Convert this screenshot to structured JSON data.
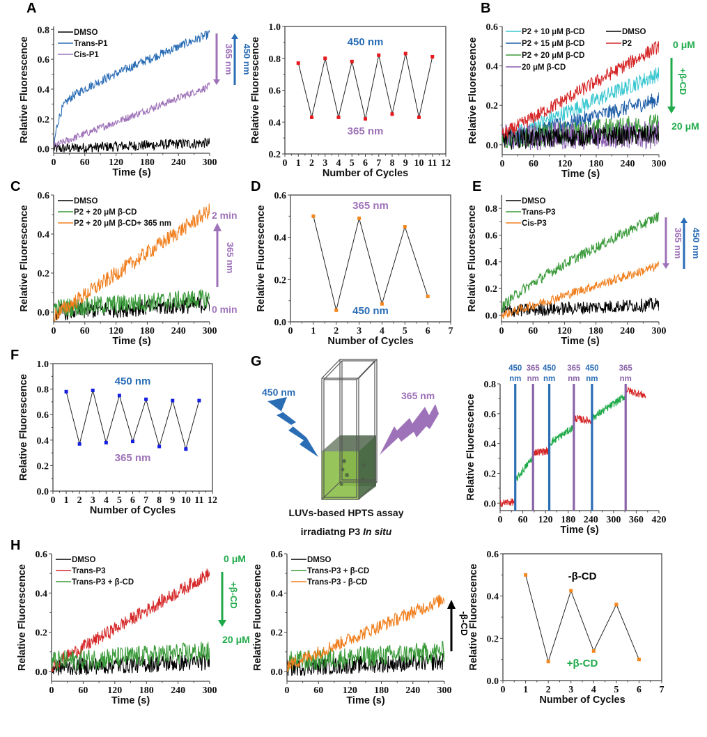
{
  "figure": {
    "panel_letters": [
      "A",
      "B",
      "C",
      "D",
      "E",
      "F",
      "G",
      "H"
    ],
    "ylabel": "Relative Fluorescence",
    "colors": {
      "blue": "#2a6db5",
      "purple": "#9e72b8",
      "green": "#1faa4a",
      "red": "#d62728",
      "orange": "#f07f1e",
      "cyan": "#3cc8d0",
      "darkblue": "#1f5fa8",
      "black": "#000000",
      "point_red": "#e8171b",
      "point_orange": "#f5871f",
      "point_blue": "#1520e0"
    }
  },
  "chart_data": [
    {
      "id": "A1",
      "panel": "A",
      "type": "line",
      "xlabel": "Time (s)",
      "ylabel": "Relative Fluorescence",
      "xlim": [
        0,
        300
      ],
      "ylim": [
        -0.03,
        0.82
      ],
      "xticks": [
        0,
        60,
        120,
        180,
        240,
        300
      ],
      "yticks": [
        0.0,
        0.2,
        0.4,
        0.6,
        0.8
      ],
      "legend": "top-left",
      "series": [
        {
          "name": "DMSO",
          "color": "#000000",
          "kind": "const",
          "start": 0.0,
          "end": 0.04,
          "noise": 0.035
        },
        {
          "name": "Trans-P1",
          "color": "#2a6db5",
          "kind": "sat",
          "start": 0.0,
          "end": 0.77,
          "tau": 0.0,
          "noise": 0.03
        },
        {
          "name": "Cis-P1",
          "color": "#9e72b8",
          "kind": "lin",
          "start": 0.02,
          "end": 0.42,
          "noise": 0.025
        }
      ],
      "annotations": [
        {
          "text": "365 nm",
          "color": "#9e72b8",
          "arrow": "down"
        },
        {
          "text": "450 nm",
          "color": "#2a6db5",
          "arrow": "up"
        }
      ]
    },
    {
      "id": "A2",
      "panel": "A",
      "type": "line",
      "xlabel": "Number of Cycles",
      "ylabel": "Relative Fluorescence",
      "xlim": [
        0,
        12
      ],
      "ylim": [
        0.2,
        1.0
      ],
      "xticks": [
        0,
        1,
        2,
        3,
        4,
        5,
        6,
        7,
        8,
        9,
        10,
        11,
        12
      ],
      "yticks": [
        0.2,
        0.4,
        0.6,
        0.8,
        1.0
      ],
      "x": [
        1,
        2,
        3,
        4,
        5,
        6,
        7,
        8,
        9,
        10,
        11
      ],
      "values": [
        0.77,
        0.43,
        0.8,
        0.43,
        0.78,
        0.42,
        0.82,
        0.45,
        0.83,
        0.43,
        0.81
      ],
      "point_color": "#e8171b",
      "annotations": [
        {
          "text": "450 nm",
          "color": "#2a6db5",
          "position": "top-center"
        },
        {
          "text": "365 nm",
          "color": "#9e72b8",
          "position": "bottom-center"
        }
      ]
    },
    {
      "id": "B",
      "panel": "B",
      "type": "line",
      "xlabel": "Time (s)",
      "ylabel": "Relative Fluorescence",
      "xlim": [
        0,
        300
      ],
      "ylim": [
        -0.05,
        0.6
      ],
      "xticks": [
        0,
        60,
        120,
        180,
        240,
        300
      ],
      "yticks": [
        0.0,
        0.2,
        0.4,
        0.6
      ],
      "legend": "top",
      "series": [
        {
          "name": "P2 + 10 μM β-CD",
          "color": "#3cc8d0",
          "kind": "lin",
          "start": 0.03,
          "end": 0.36,
          "noise": 0.04
        },
        {
          "name": "P2 + 15 μM β-CD",
          "color": "#1f5fa8",
          "kind": "lin",
          "start": 0.02,
          "end": 0.23,
          "noise": 0.04
        },
        {
          "name": "P2 + 20 μM β-CD",
          "color": "#3a9a3a",
          "kind": "lin",
          "start": 0.03,
          "end": 0.1,
          "noise": 0.06
        },
        {
          "name": "20 μM β-CD",
          "color": "#8a5fb0",
          "kind": "const",
          "start": 0.04,
          "end": 0.05,
          "noise": 0.07
        },
        {
          "name": "DMSO",
          "color": "#000000",
          "kind": "const",
          "start": 0.03,
          "end": 0.05,
          "noise": 0.05
        },
        {
          "name": "P2",
          "color": "#d62728",
          "kind": "lin",
          "start": 0.05,
          "end": 0.5,
          "noise": 0.035
        }
      ],
      "annotations": [
        {
          "text": "0 μM",
          "color": "#1faa4a"
        },
        {
          "text": "+β-CD",
          "color": "#1faa4a",
          "arrow": "down"
        },
        {
          "text": "20 μM",
          "color": "#1faa4a"
        }
      ]
    },
    {
      "id": "C",
      "panel": "C",
      "type": "line",
      "xlabel": "Time (s)",
      "ylabel": "Relative Fluorescence",
      "xlim": [
        0,
        300
      ],
      "ylim": [
        -0.05,
        0.6
      ],
      "xticks": [
        0,
        60,
        120,
        180,
        240,
        300
      ],
      "yticks": [
        0.0,
        0.2,
        0.4,
        0.6
      ],
      "legend": "top-left",
      "series": [
        {
          "name": "DMSO",
          "color": "#000000",
          "kind": "const",
          "start": 0.0,
          "end": 0.04,
          "noise": 0.045
        },
        {
          "name": "P2 + 20 μM β-CD",
          "color": "#3a9a3a",
          "kind": "const",
          "start": 0.02,
          "end": 0.07,
          "noise": 0.05
        },
        {
          "name": "P2 + 20 μM β-CD+ 365 nm",
          "color": "#f07f1e",
          "kind": "lin",
          "start": -0.02,
          "end": 0.52,
          "noise": 0.04
        }
      ],
      "annotations": [
        {
          "text": "2 min",
          "color": "#9e72b8"
        },
        {
          "text": "365 nm",
          "color": "#9e72b8",
          "arrow": "up"
        },
        {
          "text": "0 min",
          "color": "#9e72b8"
        }
      ]
    },
    {
      "id": "D",
      "panel": "D",
      "type": "line",
      "xlabel": "Number of Cycles",
      "ylabel": "Relative Fluorescence",
      "xlim": [
        0,
        7
      ],
      "ylim": [
        0.0,
        0.6
      ],
      "xticks": [
        0,
        1,
        2,
        3,
        4,
        5,
        6,
        7
      ],
      "yticks": [
        0.0,
        0.2,
        0.4,
        0.6
      ],
      "x": [
        1,
        2,
        3,
        4,
        5,
        6
      ],
      "values": [
        0.5,
        0.055,
        0.49,
        0.085,
        0.45,
        0.12
      ],
      "point_color": "#f5871f",
      "annotations": [
        {
          "text": "365 nm",
          "color": "#9e72b8",
          "position": "top-center"
        },
        {
          "text": "450 nm",
          "color": "#2a6db5",
          "position": "bottom-center"
        }
      ]
    },
    {
      "id": "E",
      "panel": "E",
      "type": "line",
      "xlabel": "Time (s)",
      "ylabel": "Relative Fluorescence",
      "xlim": [
        0,
        300
      ],
      "ylim": [
        -0.05,
        0.9
      ],
      "xticks": [
        0,
        60,
        120,
        180,
        240,
        300
      ],
      "yticks": [
        0.0,
        0.2,
        0.4,
        0.6,
        0.8
      ],
      "legend": "top-left",
      "series": [
        {
          "name": "DMSO",
          "color": "#000000",
          "kind": "const",
          "start": 0.03,
          "end": 0.08,
          "noise": 0.05
        },
        {
          "name": "Trans-P3",
          "color": "#3a9a3a",
          "kind": "sqrtish",
          "start": 0.05,
          "end": 0.74,
          "noise": 0.04
        },
        {
          "name": "Cis-P3",
          "color": "#f07f1e",
          "kind": "lin",
          "start": 0.0,
          "end": 0.37,
          "noise": 0.035
        }
      ],
      "annotations": [
        {
          "text": "365 nm",
          "color": "#9e72b8",
          "arrow": "down"
        },
        {
          "text": "450 nm",
          "color": "#2a6db5",
          "arrow": "up"
        }
      ]
    },
    {
      "id": "F",
      "panel": "F",
      "type": "line",
      "xlabel": "Number of Cycles",
      "ylabel": "Relative Fluorescence",
      "xlim": [
        0,
        12
      ],
      "ylim": [
        0.0,
        1.0
      ],
      "xticks": [
        0,
        1,
        2,
        3,
        4,
        5,
        6,
        7,
        8,
        9,
        10,
        11,
        12
      ],
      "yticks": [
        0.0,
        0.2,
        0.4,
        0.6,
        0.8,
        1.0
      ],
      "x": [
        1,
        2,
        3,
        4,
        5,
        6,
        7,
        8,
        9,
        10,
        11
      ],
      "values": [
        0.78,
        0.37,
        0.79,
        0.38,
        0.75,
        0.39,
        0.72,
        0.35,
        0.71,
        0.33,
        0.71
      ],
      "point_color": "#1520e0",
      "annotations": [
        {
          "text": "450 nm",
          "color": "#2a6db5",
          "position": "top-center"
        },
        {
          "text": "365 nm",
          "color": "#9e72b8",
          "position": "bottom-center"
        }
      ]
    },
    {
      "id": "G",
      "panel": "G",
      "type": "line",
      "xlabel": "Time (s)",
      "ylabel": "Relative Fluorescence",
      "xlim": [
        0,
        420
      ],
      "ylim": [
        -0.05,
        0.8
      ],
      "xticks": [
        0,
        60,
        120,
        180,
        240,
        300,
        360,
        420
      ],
      "yticks": [
        0.0,
        0.2,
        0.4,
        0.6,
        0.8
      ],
      "segments": [
        {
          "x0": 0,
          "x1": 40,
          "y0": 0.0,
          "y1": 0.01,
          "color": "#d62728"
        },
        {
          "x0": 40,
          "x1": 87,
          "y0": 0.15,
          "y1": 0.31,
          "color": "#1faa4a"
        },
        {
          "x0": 87,
          "x1": 130,
          "y0": 0.34,
          "y1": 0.35,
          "color": "#d62728"
        },
        {
          "x0": 130,
          "x1": 195,
          "y0": 0.4,
          "y1": 0.51,
          "color": "#1faa4a"
        },
        {
          "x0": 195,
          "x1": 243,
          "y0": 0.57,
          "y1": 0.55,
          "color": "#d62728"
        },
        {
          "x0": 243,
          "x1": 332,
          "y0": 0.57,
          "y1": 0.72,
          "color": "#1faa4a"
        },
        {
          "x0": 332,
          "x1": 385,
          "y0": 0.76,
          "y1": 0.72,
          "color": "#d62728"
        }
      ],
      "irradiation_markers": [
        {
          "time": 40,
          "label": "450 nm",
          "color": "#2a6db5"
        },
        {
          "time": 87,
          "label": "365 nm",
          "color": "#8a63a8"
        },
        {
          "time": 130,
          "label": "450 nm",
          "color": "#2a6db5"
        },
        {
          "time": 195,
          "label": "365 nm",
          "color": "#8a63a8"
        },
        {
          "time": 243,
          "label": "450 nm",
          "color": "#2a6db5"
        },
        {
          "time": 332,
          "label": "365 nm",
          "color": "#8a63a8"
        }
      ]
    },
    {
      "id": "H1",
      "panel": "H",
      "type": "line",
      "xlabel": "Time (s)",
      "ylabel": "Relative Fluorescence",
      "xlim": [
        0,
        300
      ],
      "ylim": [
        -0.05,
        0.6
      ],
      "xticks": [
        0,
        60,
        120,
        180,
        240,
        300
      ],
      "yticks": [
        0.0,
        0.2,
        0.4,
        0.6
      ],
      "legend": "top-left",
      "series": [
        {
          "name": "DMSO",
          "color": "#000000",
          "kind": "const",
          "start": 0.02,
          "end": 0.05,
          "noise": 0.045
        },
        {
          "name": "Trans-P3",
          "color": "#d62728",
          "kind": "lin",
          "start": 0.03,
          "end": 0.5,
          "noise": 0.035
        },
        {
          "name": "Trans-P3 + β-CD",
          "color": "#3a9a3a",
          "kind": "const",
          "start": 0.05,
          "end": 0.1,
          "noise": 0.055
        }
      ],
      "annotations": [
        {
          "text": "0 μM",
          "color": "#1faa4a"
        },
        {
          "text": "+β-CD",
          "color": "#1faa4a",
          "arrow": "down"
        },
        {
          "text": "20 μM",
          "color": "#1faa4a"
        }
      ]
    },
    {
      "id": "H2",
      "panel": "H",
      "type": "line",
      "xlabel": "Time (s)",
      "ylabel": "Relative Fluorescence",
      "xlim": [
        0,
        300
      ],
      "ylim": [
        -0.05,
        0.6
      ],
      "xticks": [
        0,
        60,
        120,
        180,
        240,
        300
      ],
      "yticks": [
        0.0,
        0.2,
        0.4,
        0.6
      ],
      "legend": "top-left",
      "series": [
        {
          "name": "DMSO",
          "color": "#000000",
          "kind": "const",
          "start": 0.02,
          "end": 0.05,
          "noise": 0.045
        },
        {
          "name": "Trans-P3 + β-CD",
          "color": "#3a9a3a",
          "kind": "const",
          "start": 0.05,
          "end": 0.1,
          "noise": 0.055
        },
        {
          "name": "Trans-P3 - β-CD",
          "color": "#f07f1e",
          "kind": "lin",
          "start": 0.03,
          "end": 0.37,
          "noise": 0.035
        }
      ],
      "annotations": [
        {
          "text": "-β-CD",
          "color": "#000000",
          "arrow": "up"
        }
      ]
    },
    {
      "id": "H3",
      "panel": "H",
      "type": "line",
      "xlabel": "Number of Cycles",
      "ylabel": "Relative Fluorescence",
      "xlim": [
        0,
        7
      ],
      "ylim": [
        0.0,
        0.6
      ],
      "xticks": [
        0,
        1,
        2,
        3,
        4,
        5,
        6,
        7
      ],
      "yticks": [
        0.0,
        0.2,
        0.4,
        0.6
      ],
      "x": [
        1,
        2,
        3,
        4,
        5,
        6
      ],
      "values": [
        0.5,
        0.09,
        0.425,
        0.14,
        0.36,
        0.1
      ],
      "point_color": "#f5871f",
      "annotations": [
        {
          "text": "-β-CD",
          "color": "#000000",
          "position": "top-center"
        },
        {
          "text": "+β-CD",
          "color": "#1faa4a",
          "position": "bottom-center"
        }
      ]
    }
  ],
  "diagram_G": {
    "left_light": "450 nm",
    "right_light": "365 nm",
    "caption_line1": "LUVs-based HPTS assay",
    "caption_line2_prefix": "irradiatng P3 ",
    "caption_line2_italic": "In situ"
  }
}
